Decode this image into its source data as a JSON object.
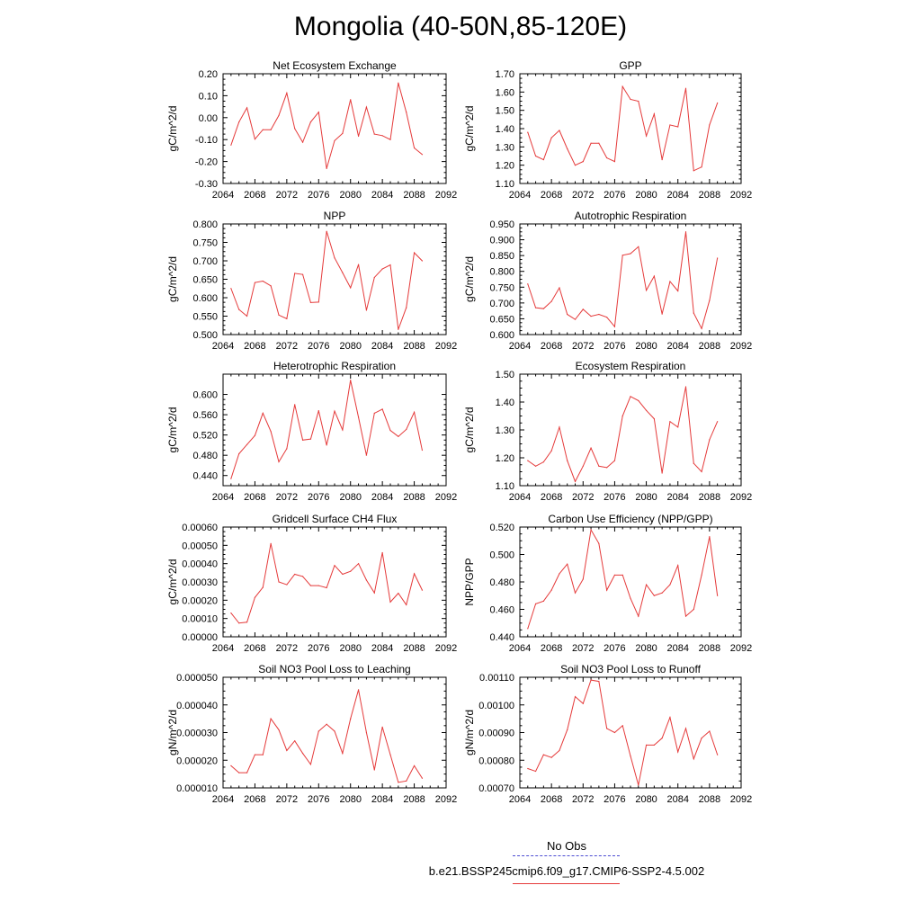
{
  "title": "Mongolia (40-50N,85-120E)",
  "legend": {
    "obs_label": "No Obs",
    "run_label": "b.e21.BSSP245cmip6.f09_g17.CMIP6-SSP2-4.5.002",
    "obs_color": "#4b4bd2",
    "run_color": "#e53a3a"
  },
  "chart_data": [
    {
      "type": "line",
      "title": "Net Ecosystem Exchange",
      "ylabel": "gC/m^2/d",
      "xlim": [
        2064,
        2092
      ],
      "xticks": [
        "2064",
        "2068",
        "2072",
        "2076",
        "2080",
        "2084",
        "2088",
        "2092"
      ],
      "ylim": [
        -0.3,
        0.2
      ],
      "yticks": [
        "-0.30",
        "-0.20",
        "-0.10",
        "0.00",
        "0.10",
        "0.20"
      ],
      "x": [
        2065,
        2066,
        2067,
        2068,
        2069,
        2070,
        2071,
        2072,
        2073,
        2074,
        2075,
        2076,
        2077,
        2078,
        2079,
        2080,
        2081,
        2082,
        2083,
        2084,
        2085,
        2086,
        2087,
        2088,
        2089
      ],
      "series": [
        {
          "color": "#e53a3a",
          "values": [
            -0.125,
            -0.02,
            0.045,
            -0.098,
            -0.055,
            -0.055,
            0.01,
            0.112,
            -0.05,
            -0.112,
            -0.02,
            0.025,
            -0.232,
            -0.105,
            -0.072,
            0.082,
            -0.085,
            0.048,
            -0.075,
            -0.082,
            -0.1,
            0.158,
            0.025,
            -0.138,
            -0.168
          ]
        }
      ]
    },
    {
      "type": "line",
      "title": "GPP",
      "ylabel": "gC/m^2/d",
      "xlim": [
        2064,
        2092
      ],
      "xticks": [
        "2064",
        "2068",
        "2072",
        "2076",
        "2080",
        "2084",
        "2088",
        "2092"
      ],
      "ylim": [
        1.1,
        1.7
      ],
      "yticks": [
        "1.10",
        "1.20",
        "1.30",
        "1.40",
        "1.50",
        "1.60",
        "1.70"
      ],
      "x": [
        2065,
        2066,
        2067,
        2068,
        2069,
        2070,
        2071,
        2072,
        2073,
        2074,
        2075,
        2076,
        2077,
        2078,
        2079,
        2080,
        2081,
        2082,
        2083,
        2084,
        2085,
        2086,
        2087,
        2088,
        2089
      ],
      "series": [
        {
          "color": "#e53a3a",
          "values": [
            1.38,
            1.25,
            1.23,
            1.35,
            1.39,
            1.29,
            1.2,
            1.22,
            1.32,
            1.32,
            1.24,
            1.22,
            1.63,
            1.56,
            1.55,
            1.36,
            1.48,
            1.23,
            1.42,
            1.41,
            1.62,
            1.17,
            1.19,
            1.42,
            1.54
          ]
        }
      ]
    },
    {
      "type": "line",
      "title": "NPP",
      "ylabel": "gC/m^2/d",
      "xlim": [
        2064,
        2092
      ],
      "xticks": [
        "2064",
        "2068",
        "2072",
        "2076",
        "2080",
        "2084",
        "2088",
        "2092"
      ],
      "ylim": [
        0.5,
        0.8
      ],
      "yticks": [
        "0.500",
        "0.550",
        "0.600",
        "0.650",
        "0.700",
        "0.750",
        "0.800"
      ],
      "x": [
        2065,
        2066,
        2067,
        2068,
        2069,
        2070,
        2071,
        2072,
        2073,
        2074,
        2075,
        2076,
        2077,
        2078,
        2079,
        2080,
        2081,
        2082,
        2083,
        2084,
        2085,
        2086,
        2087,
        2088,
        2089
      ],
      "series": [
        {
          "color": "#e53a3a",
          "values": [
            0.625,
            0.568,
            0.55,
            0.641,
            0.645,
            0.632,
            0.553,
            0.543,
            0.666,
            0.663,
            0.587,
            0.588,
            0.78,
            0.708,
            0.668,
            0.627,
            0.69,
            0.566,
            0.655,
            0.678,
            0.689,
            0.514,
            0.573,
            0.722,
            0.7
          ]
        }
      ]
    },
    {
      "type": "line",
      "title": "Autotrophic Respiration",
      "ylabel": "gC/m^2/d",
      "xlim": [
        2064,
        2092
      ],
      "xticks": [
        "2064",
        "2068",
        "2072",
        "2076",
        "2080",
        "2084",
        "2088",
        "2092"
      ],
      "ylim": [
        0.6,
        0.95
      ],
      "yticks": [
        "0.600",
        "0.650",
        "0.700",
        "0.750",
        "0.800",
        "0.850",
        "0.900",
        "0.950"
      ],
      "x": [
        2065,
        2066,
        2067,
        2068,
        2069,
        2070,
        2071,
        2072,
        2073,
        2074,
        2075,
        2076,
        2077,
        2078,
        2079,
        2080,
        2081,
        2082,
        2083,
        2084,
        2085,
        2086,
        2087,
        2088,
        2089
      ],
      "series": [
        {
          "color": "#e53a3a",
          "values": [
            0.76,
            0.685,
            0.682,
            0.705,
            0.748,
            0.664,
            0.648,
            0.68,
            0.658,
            0.664,
            0.655,
            0.625,
            0.851,
            0.856,
            0.878,
            0.74,
            0.785,
            0.665,
            0.768,
            0.738,
            0.925,
            0.668,
            0.619,
            0.708,
            0.842
          ]
        }
      ]
    },
    {
      "type": "line",
      "title": "Heterotrophic Respiration",
      "ylabel": "gC/m^2/d",
      "xlim": [
        2064,
        2092
      ],
      "xticks": [
        "2064",
        "2068",
        "2072",
        "2076",
        "2080",
        "2084",
        "2088",
        "2092"
      ],
      "ylim": [
        0.42,
        0.64
      ],
      "yticks": [
        "0.440",
        "0.480",
        "0.520",
        "0.560",
        "0.600"
      ],
      "ytick_values": [
        0.44,
        0.48,
        0.52,
        0.56,
        0.6
      ],
      "x": [
        2065,
        2066,
        2067,
        2068,
        2069,
        2070,
        2071,
        2072,
        2073,
        2074,
        2075,
        2076,
        2077,
        2078,
        2079,
        2080,
        2081,
        2082,
        2083,
        2084,
        2085,
        2086,
        2087,
        2088,
        2089
      ],
      "series": [
        {
          "color": "#e53a3a",
          "values": [
            0.434,
            0.483,
            0.501,
            0.519,
            0.563,
            0.527,
            0.467,
            0.493,
            0.58,
            0.51,
            0.512,
            0.568,
            0.5,
            0.567,
            0.53,
            0.628,
            0.555,
            0.48,
            0.563,
            0.571,
            0.529,
            0.517,
            0.531,
            0.565,
            0.49
          ]
        }
      ]
    },
    {
      "type": "line",
      "title": "Ecosystem Respiration",
      "ylabel": "gC/m^2/d",
      "xlim": [
        2064,
        2092
      ],
      "xticks": [
        "2064",
        "2068",
        "2072",
        "2076",
        "2080",
        "2084",
        "2088",
        "2092"
      ],
      "ylim": [
        1.1,
        1.5
      ],
      "yticks": [
        "1.10",
        "1.20",
        "1.30",
        "1.40",
        "1.50"
      ],
      "x": [
        2065,
        2066,
        2067,
        2068,
        2069,
        2070,
        2071,
        2072,
        2073,
        2074,
        2075,
        2076,
        2077,
        2078,
        2079,
        2080,
        2081,
        2082,
        2083,
        2084,
        2085,
        2086,
        2087,
        2088,
        2089
      ],
      "series": [
        {
          "color": "#e53a3a",
          "values": [
            1.19,
            1.17,
            1.185,
            1.225,
            1.31,
            1.19,
            1.115,
            1.17,
            1.235,
            1.17,
            1.165,
            1.19,
            1.35,
            1.42,
            1.405,
            1.37,
            1.34,
            1.145,
            1.33,
            1.31,
            1.455,
            1.18,
            1.15,
            1.265,
            1.33
          ]
        }
      ]
    },
    {
      "type": "line",
      "title": "Gridcell Surface CH4 Flux",
      "ylabel": "gC/m^2/d",
      "xlim": [
        2064,
        2092
      ],
      "xticks": [
        "2064",
        "2068",
        "2072",
        "2076",
        "2080",
        "2084",
        "2088",
        "2092"
      ],
      "ylim": [
        0.0,
        0.0006
      ],
      "yticks": [
        "0.00000",
        "0.00010",
        "0.00020",
        "0.00030",
        "0.00040",
        "0.00050",
        "0.00060"
      ],
      "x": [
        2065,
        2066,
        2067,
        2068,
        2069,
        2070,
        2071,
        2072,
        2073,
        2074,
        2075,
        2076,
        2077,
        2078,
        2079,
        2080,
        2081,
        2082,
        2083,
        2084,
        2085,
        2086,
        2087,
        2088,
        2089
      ],
      "series": [
        {
          "color": "#e53a3a",
          "values": [
            0.00013,
            7.5e-05,
            8e-05,
            0.000215,
            0.00027,
            0.00051,
            0.0003,
            0.000285,
            0.000342,
            0.00033,
            0.00028,
            0.00028,
            0.000268,
            0.00039,
            0.000342,
            0.000358,
            0.0004,
            0.00031,
            0.00024,
            0.00046,
            0.00019,
            0.000238,
            0.000175,
            0.000345,
            0.000255
          ]
        }
      ]
    },
    {
      "type": "line",
      "title": "Carbon Use Efficiency (NPP/GPP)",
      "ylabel": "NPP/GPP",
      "xlim": [
        2064,
        2092
      ],
      "xticks": [
        "2064",
        "2068",
        "2072",
        "2076",
        "2080",
        "2084",
        "2088",
        "2092"
      ],
      "ylim": [
        0.44,
        0.52
      ],
      "yticks": [
        "0.440",
        "0.460",
        "0.480",
        "0.500",
        "0.520"
      ],
      "x": [
        2065,
        2066,
        2067,
        2068,
        2069,
        2070,
        2071,
        2072,
        2073,
        2074,
        2075,
        2076,
        2077,
        2078,
        2079,
        2080,
        2081,
        2082,
        2083,
        2084,
        2085,
        2086,
        2087,
        2088,
        2089
      ],
      "series": [
        {
          "color": "#e53a3a",
          "values": [
            0.446,
            0.464,
            0.466,
            0.474,
            0.486,
            0.493,
            0.472,
            0.482,
            0.518,
            0.508,
            0.474,
            0.485,
            0.485,
            0.468,
            0.455,
            0.478,
            0.47,
            0.472,
            0.478,
            0.492,
            0.455,
            0.46,
            0.485,
            0.513,
            0.47
          ]
        }
      ]
    },
    {
      "type": "line",
      "title": "Soil NO3 Pool Loss to Leaching",
      "ylabel": "gN/m^2/d",
      "xlim": [
        2064,
        2092
      ],
      "xticks": [
        "2064",
        "2068",
        "2072",
        "2076",
        "2080",
        "2084",
        "2088",
        "2092"
      ],
      "ylim": [
        1e-05,
        5e-05
      ],
      "yticks": [
        "0.000010",
        "0.000020",
        "0.000030",
        "0.000040",
        "0.000050"
      ],
      "x": [
        2065,
        2066,
        2067,
        2068,
        2069,
        2070,
        2071,
        2072,
        2073,
        2074,
        2075,
        2076,
        2077,
        2078,
        2079,
        2080,
        2081,
        2082,
        2083,
        2084,
        2085,
        2086,
        2087,
        2088,
        2089
      ],
      "series": [
        {
          "color": "#e53a3a",
          "values": [
            1.8e-05,
            1.55e-05,
            1.55e-05,
            2.2e-05,
            2.2e-05,
            3.5e-05,
            3.1e-05,
            2.35e-05,
            2.7e-05,
            2.25e-05,
            1.85e-05,
            3.05e-05,
            3.3e-05,
            3.05e-05,
            2.25e-05,
            3.5e-05,
            4.55e-05,
            3e-05,
            1.65e-05,
            3.2e-05,
            2.2e-05,
            1.2e-05,
            1.25e-05,
            1.8e-05,
            1.35e-05
          ]
        }
      ]
    },
    {
      "type": "line",
      "title": "Soil NO3 Pool Loss to Runoff",
      "ylabel": "gN/m^2/d",
      "xlim": [
        2064,
        2092
      ],
      "xticks": [
        "2064",
        "2068",
        "2072",
        "2076",
        "2080",
        "2084",
        "2088",
        "2092"
      ],
      "ylim": [
        0.0007,
        0.0011
      ],
      "yticks": [
        "0.00070",
        "0.00080",
        "0.00090",
        "0.00100",
        "0.00110"
      ],
      "x": [
        2065,
        2066,
        2067,
        2068,
        2069,
        2070,
        2071,
        2072,
        2073,
        2074,
        2075,
        2076,
        2077,
        2078,
        2079,
        2080,
        2081,
        2082,
        2083,
        2084,
        2085,
        2086,
        2087,
        2088,
        2089
      ],
      "series": [
        {
          "color": "#e53a3a",
          "values": [
            0.00077,
            0.00076,
            0.00082,
            0.00081,
            0.000835,
            0.00091,
            0.00103,
            0.001005,
            0.00109,
            0.001085,
            0.000915,
            0.0009,
            0.000925,
            0.000815,
            0.00071,
            0.000855,
            0.000855,
            0.00088,
            0.000955,
            0.00083,
            0.000915,
            0.000805,
            0.00088,
            0.000905,
            0.00082
          ]
        }
      ]
    }
  ]
}
